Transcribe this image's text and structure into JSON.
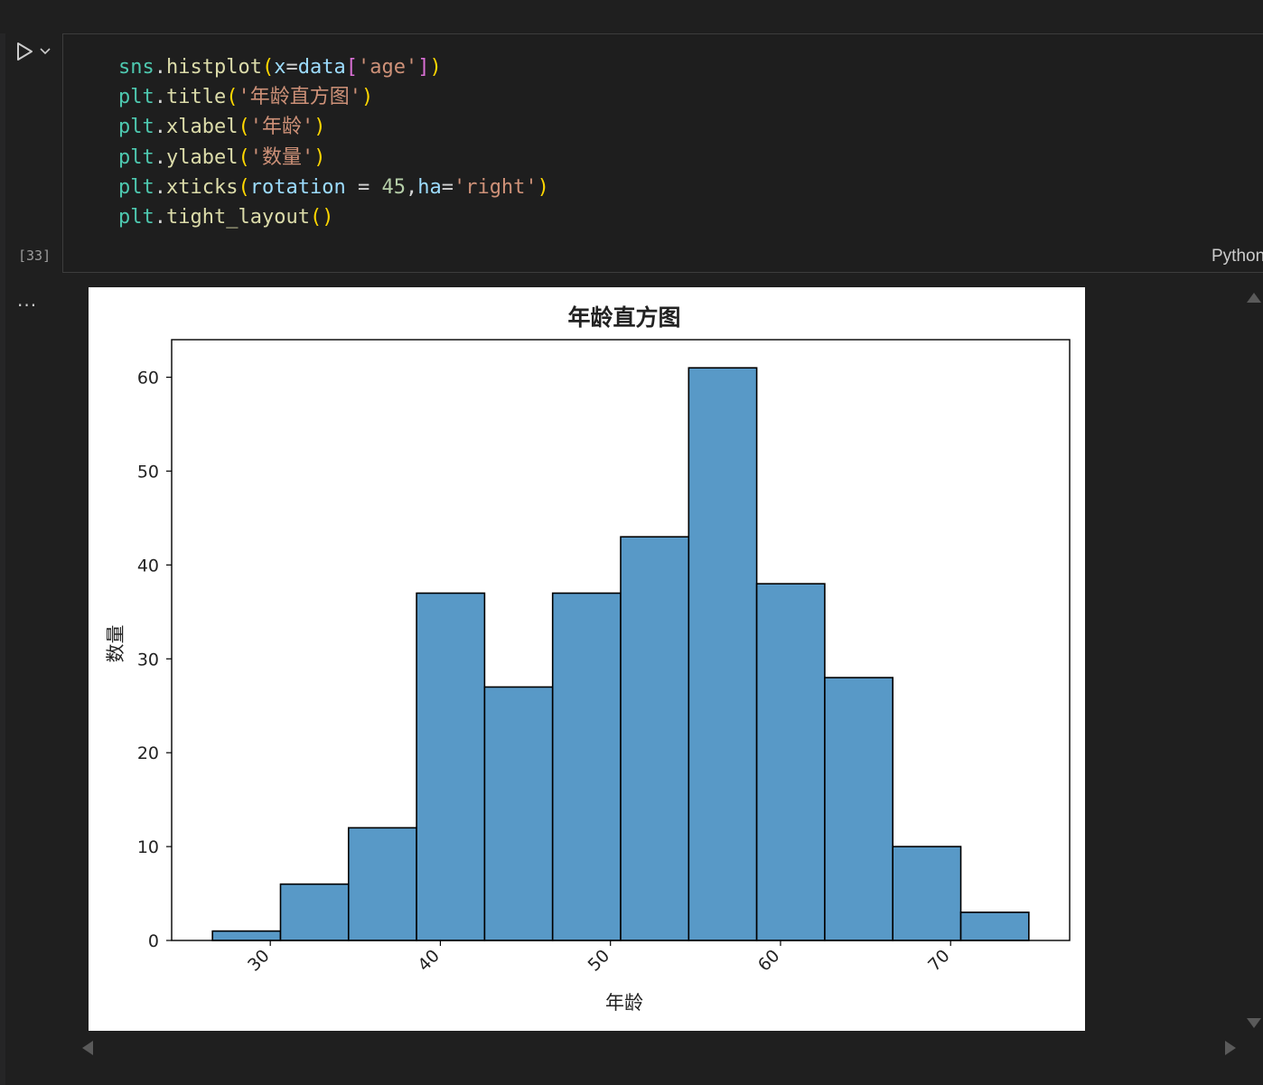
{
  "cell": {
    "execution_count": "[33]",
    "language": "Python",
    "code_lines": [
      [
        [
          "t-var",
          "sns"
        ],
        [
          "t-pun",
          "."
        ],
        [
          "t-fn",
          "histplot"
        ],
        [
          "t-par",
          "("
        ],
        [
          "t-kw",
          "x"
        ],
        [
          "t-pun",
          "="
        ],
        [
          "t-kw",
          "data"
        ],
        [
          "t-par2",
          "["
        ],
        [
          "t-str",
          "'age'"
        ],
        [
          "t-par2",
          "]"
        ],
        [
          "t-par",
          ")"
        ]
      ],
      [
        [
          "t-var",
          "plt"
        ],
        [
          "t-pun",
          "."
        ],
        [
          "t-fn",
          "title"
        ],
        [
          "t-par",
          "("
        ],
        [
          "t-str",
          "'年龄直方图'"
        ],
        [
          "t-par",
          ")"
        ]
      ],
      [
        [
          "t-var",
          "plt"
        ],
        [
          "t-pun",
          "."
        ],
        [
          "t-fn",
          "xlabel"
        ],
        [
          "t-par",
          "("
        ],
        [
          "t-str",
          "'年龄'"
        ],
        [
          "t-par",
          ")"
        ]
      ],
      [
        [
          "t-var",
          "plt"
        ],
        [
          "t-pun",
          "."
        ],
        [
          "t-fn",
          "ylabel"
        ],
        [
          "t-par",
          "("
        ],
        [
          "t-str",
          "'数量'"
        ],
        [
          "t-par",
          ")"
        ]
      ],
      [
        [
          "t-var",
          "plt"
        ],
        [
          "t-pun",
          "."
        ],
        [
          "t-fn",
          "xticks"
        ],
        [
          "t-par",
          "("
        ],
        [
          "t-kw",
          "rotation"
        ],
        [
          "t-pun",
          " = "
        ],
        [
          "t-num",
          "45"
        ],
        [
          "t-pun",
          ","
        ],
        [
          "t-kw",
          "ha"
        ],
        [
          "t-pun",
          "="
        ],
        [
          "t-str",
          "'right'"
        ],
        [
          "t-par",
          ")"
        ]
      ],
      [
        [
          "t-var",
          "plt"
        ],
        [
          "t-pun",
          "."
        ],
        [
          "t-fn",
          "tight_layout"
        ],
        [
          "t-par",
          "()"
        ]
      ]
    ]
  },
  "output": {
    "more_actions_label": "..."
  },
  "icons": {
    "run": "play-icon",
    "run_menu": "chevron-down-icon"
  },
  "colors": {
    "bar_fill": "#5899c7",
    "bar_edge": "#000000",
    "background": "#1f1f1f"
  },
  "chart_data": {
    "type": "bar",
    "title": "年龄直方图",
    "xlabel": "年龄",
    "ylabel": "数量",
    "bins": [
      {
        "x0": 26.6,
        "x1": 30.6,
        "count": 1
      },
      {
        "x0": 30.6,
        "x1": 34.6,
        "count": 6
      },
      {
        "x0": 34.6,
        "x1": 38.6,
        "count": 12
      },
      {
        "x0": 38.6,
        "x1": 42.6,
        "count": 37
      },
      {
        "x0": 42.6,
        "x1": 46.6,
        "count": 27
      },
      {
        "x0": 46.6,
        "x1": 50.6,
        "count": 37
      },
      {
        "x0": 50.6,
        "x1": 54.6,
        "count": 43
      },
      {
        "x0": 54.6,
        "x1": 58.6,
        "count": 61
      },
      {
        "x0": 58.6,
        "x1": 62.6,
        "count": 38
      },
      {
        "x0": 62.6,
        "x1": 66.6,
        "count": 28
      },
      {
        "x0": 66.6,
        "x1": 70.6,
        "count": 10
      },
      {
        "x0": 70.6,
        "x1": 74.6,
        "count": 3
      }
    ],
    "xticks": [
      "30",
      "40",
      "50",
      "60",
      "70"
    ],
    "yticks": [
      "0",
      "10",
      "20",
      "30",
      "40",
      "50",
      "60"
    ],
    "xlim": [
      24.2,
      77.0
    ],
    "ylim": [
      0,
      64
    ],
    "xtick_rotation_deg": 45,
    "grid": false,
    "legend": false
  }
}
